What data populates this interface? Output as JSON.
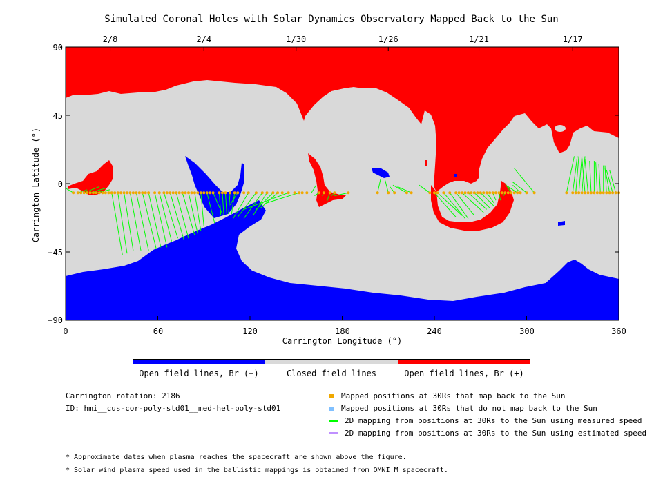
{
  "chart_data": {
    "type": "map",
    "title": "Simulated Coronal Holes with Solar Dynamics Observatory Mapped Back to the Sun",
    "xlabel": "Carrington Longitude (°)",
    "ylabel": "Carrington Latitude (°)",
    "xlim": [
      0,
      360
    ],
    "ylim": [
      -90,
      90
    ],
    "x_ticks": [
      "0",
      "60",
      "120",
      "180",
      "240",
      "300",
      "360"
    ],
    "y_ticks": [
      "90",
      "45",
      "0",
      "−45",
      "−90"
    ],
    "top_date_ticks": [
      {
        "label": "2/8",
        "lon": 29
      },
      {
        "label": "2/4",
        "lon": 90
      },
      {
        "label": "1/30",
        "lon": 150
      },
      {
        "label": "1/26",
        "lon": 210
      },
      {
        "label": "1/21",
        "lon": 269
      },
      {
        "label": "1/17",
        "lon": 330
      }
    ],
    "colors": {
      "open_negative": "#0000ff",
      "closed": "#d9d9d9",
      "open_positive": "#ff0000",
      "mapped": "#f0a800",
      "not_mapped": "#80c0ff",
      "measured": "#00ff00",
      "estimated": "#c090ff"
    },
    "colorbar_labels": [
      "Open field lines, Br (−)",
      "Closed field lines",
      "Open field lines, Br (+)"
    ],
    "mapped_point_lat": -6,
    "mapped_point_lons": [
      5,
      8,
      10,
      12,
      14,
      16,
      18,
      20,
      22,
      24,
      26,
      28,
      30,
      32,
      34,
      36,
      38,
      40,
      42,
      44,
      46,
      48,
      50,
      52,
      54,
      58,
      61,
      64,
      66,
      68,
      70,
      72,
      74,
      76,
      78,
      80,
      82,
      84,
      86,
      88,
      90,
      92,
      94,
      96,
      100,
      102,
      104,
      107,
      110,
      112,
      116,
      119,
      124,
      128,
      131,
      135,
      138,
      141,
      145,
      149,
      152,
      154,
      157,
      165,
      168,
      172,
      175,
      184,
      203,
      210,
      214,
      222,
      225,
      237,
      240,
      242,
      246,
      250,
      254,
      256,
      258,
      260,
      262,
      264,
      266,
      268,
      270,
      272,
      274,
      276,
      278,
      280,
      282,
      284,
      286,
      288,
      290,
      292,
      294,
      296,
      300,
      305,
      326,
      330,
      332,
      334,
      336,
      338,
      340,
      342,
      344,
      346,
      348,
      350,
      352,
      354,
      356,
      358,
      360
    ],
    "mappings": [
      [
        5,
        -6,
        0,
        -3
      ],
      [
        8,
        -6,
        14,
        -4
      ],
      [
        12,
        -6,
        22,
        -2
      ],
      [
        16,
        -6,
        26,
        -3
      ],
      [
        20,
        -6,
        29,
        -4
      ],
      [
        30,
        -6,
        37,
        -47
      ],
      [
        34,
        -6,
        40,
        -46
      ],
      [
        38,
        -6,
        44,
        -44
      ],
      [
        42,
        -6,
        49,
        -44
      ],
      [
        46,
        -6,
        54,
        -44
      ],
      [
        50,
        -6,
        59,
        -43
      ],
      [
        54,
        -6,
        62,
        -42
      ],
      [
        58,
        -6,
        66,
        -42
      ],
      [
        61,
        -6,
        69,
        -38
      ],
      [
        64,
        -6,
        73,
        -36
      ],
      [
        68,
        -6,
        77,
        -37
      ],
      [
        72,
        -6,
        80,
        -36
      ],
      [
        76,
        -6,
        84,
        -34
      ],
      [
        80,
        -6,
        86,
        -33
      ],
      [
        84,
        -6,
        88,
        -31
      ],
      [
        88,
        -6,
        90,
        -28
      ],
      [
        92,
        -6,
        97,
        -26
      ],
      [
        96,
        -6,
        102,
        -20
      ],
      [
        100,
        -6,
        101,
        -21
      ],
      [
        102,
        -6,
        103,
        -21
      ],
      [
        104,
        -6,
        105,
        -22
      ],
      [
        107,
        -6,
        106,
        -20
      ],
      [
        110,
        -6,
        108,
        -20
      ],
      [
        112,
        -6,
        107,
        -14
      ],
      [
        119,
        -6,
        109,
        -23
      ],
      [
        124,
        -6,
        112,
        -22
      ],
      [
        128,
        -6,
        116,
        -23
      ],
      [
        131,
        -6,
        122,
        -21
      ],
      [
        135,
        -6,
        124,
        -17
      ],
      [
        138,
        -6,
        127,
        -16
      ],
      [
        145,
        -6,
        116,
        -17
      ],
      [
        152,
        -6,
        130,
        -13
      ],
      [
        160,
        -6,
        163,
        -1
      ],
      [
        165,
        -6,
        162,
        -8
      ],
      [
        168,
        -6,
        167,
        -8
      ],
      [
        172,
        -6,
        170,
        -12
      ],
      [
        175,
        -6,
        173,
        -8
      ],
      [
        184,
        -6,
        175,
        -8
      ],
      [
        203,
        -6,
        205,
        3
      ],
      [
        210,
        -6,
        208,
        2
      ],
      [
        214,
        -6,
        211,
        -2
      ],
      [
        222,
        -6,
        213,
        -1
      ],
      [
        225,
        -6,
        216,
        -2
      ],
      [
        237,
        -6,
        230,
        -1
      ],
      [
        240,
        -6,
        254,
        -22
      ],
      [
        242,
        -6,
        258,
        -21
      ],
      [
        246,
        -6,
        260,
        -23
      ],
      [
        250,
        -6,
        262,
        -23
      ],
      [
        254,
        -6,
        266,
        -21
      ],
      [
        258,
        -6,
        272,
        -19
      ],
      [
        262,
        -6,
        274,
        -17
      ],
      [
        266,
        -6,
        276,
        -16
      ],
      [
        270,
        -6,
        279,
        -15
      ],
      [
        274,
        -6,
        279,
        -13
      ],
      [
        278,
        -6,
        280,
        -11
      ],
      [
        282,
        -6,
        283,
        -11
      ],
      [
        286,
        -6,
        285,
        -8
      ],
      [
        290,
        -6,
        286,
        0
      ],
      [
        294,
        -6,
        288,
        -2
      ],
      [
        296,
        -6,
        291,
        -1
      ],
      [
        300,
        -6,
        291,
        1
      ],
      [
        305,
        -6,
        292,
        10
      ],
      [
        326,
        -6,
        331,
        18
      ],
      [
        330,
        -6,
        333,
        18
      ],
      [
        332,
        -6,
        334,
        18
      ],
      [
        334,
        -6,
        336,
        18
      ],
      [
        336,
        -6,
        338,
        18
      ],
      [
        338,
        -6,
        336,
        17
      ],
      [
        340,
        -6,
        338,
        16
      ],
      [
        342,
        -6,
        341,
        15
      ],
      [
        344,
        -6,
        344,
        15
      ],
      [
        346,
        -6,
        345,
        14
      ],
      [
        348,
        -6,
        347,
        13
      ],
      [
        350,
        -6,
        350,
        12
      ],
      [
        352,
        -6,
        351,
        12
      ],
      [
        354,
        -6,
        351,
        10
      ],
      [
        356,
        -6,
        352,
        9
      ],
      [
        358,
        -6,
        354,
        9
      ]
    ]
  },
  "colorbar": {
    "labels": [
      "Open field lines, Br (−)",
      "Closed field lines",
      "Open field lines, Br (+)"
    ]
  },
  "info": {
    "rotation": "Carrington rotation: 2186",
    "id": "ID: hmi__cus-cor-poly-std01__med-hel-poly-std01"
  },
  "legend": {
    "mapped": "Mapped positions at 30Rs that map back to the Sun",
    "not_mapped": "Mapped positions at 30Rs that do not map back to the Sun",
    "measured": "2D mapping from positions at 30Rs to the Sun using measured speed",
    "estimated": "2D mapping from positions at 30Rs to the Sun using estimated speed"
  },
  "notes": {
    "n1": "* Approximate dates when plasma reaches the spacecraft are shown above the figure.",
    "n2": "* Solar wind plasma speed used in the ballistic mappings is obtained from OMNI_M spacecraft."
  }
}
